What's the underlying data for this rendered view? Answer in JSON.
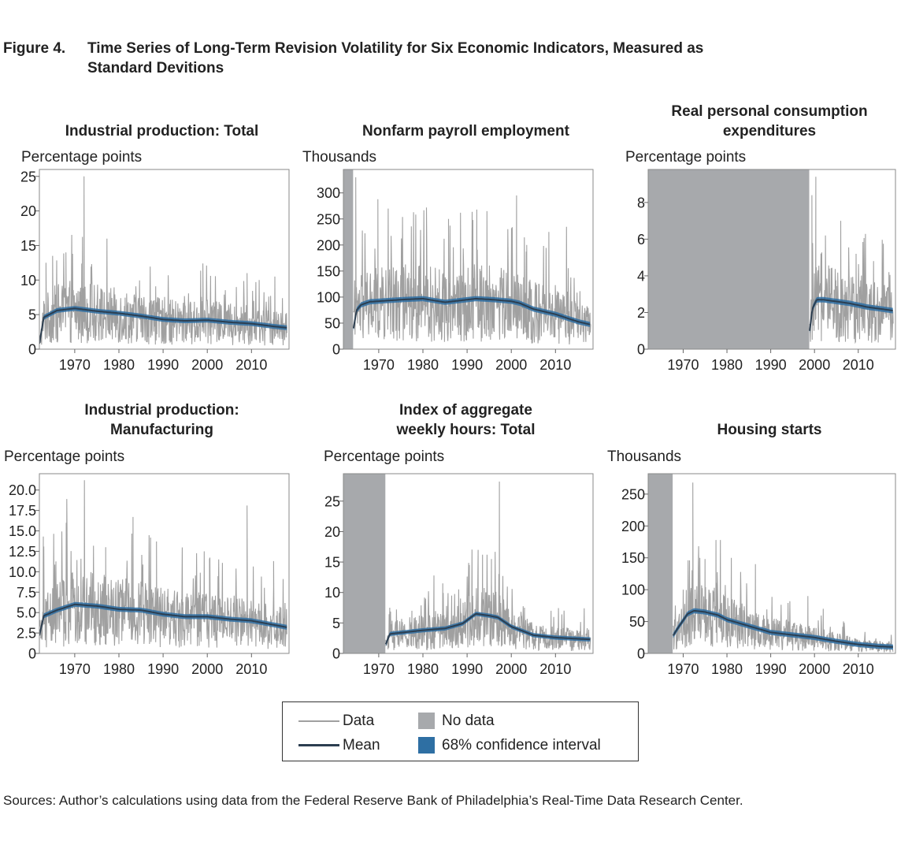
{
  "figure": {
    "number": "Figure 4.",
    "title": "Time Series of Long-Term Revision Volatility for Six Economic Indicators, Measured as Standard Devitions"
  },
  "colors": {
    "data": "#a0a0a0",
    "mean": "#2c3e50",
    "ci": "#2e6fa3",
    "nodata": "#a7a9ac"
  },
  "legend": {
    "data_label": "Data",
    "mean_label": "Mean",
    "nodata_label": "No data",
    "ci_label": "68% confidence interval"
  },
  "sources": "Sources: Author’s calculations using data from the Federal Reserve Bank of Philadelphia’s Real-Time Data Research Center.",
  "chart_data": [
    {
      "type": "line",
      "title": "Industrial production: Total",
      "ylabel": "Percentage points",
      "xlim": [
        1962,
        2018.5
      ],
      "ylim": [
        0,
        26
      ],
      "xticks": [
        1970,
        1980,
        1990,
        2000,
        2010
      ],
      "yticks": [
        0,
        5,
        10,
        15,
        20,
        25
      ],
      "ytick_labels": [
        "0",
        "5",
        "10",
        "15",
        "20",
        "25"
      ],
      "no_data": [],
      "data_range": [
        1962,
        2018
      ],
      "noise_base": 3.0,
      "spikes": [
        [
          1972.1,
          25
        ],
        [
          1977.3,
          16
        ],
        [
          1963.5,
          12.5
        ],
        [
          1965.0,
          13.5
        ],
        [
          1968.0,
          14
        ],
        [
          1969.5,
          13.8
        ],
        [
          1999.0,
          12.4
        ],
        [
          2009.0,
          11
        ],
        [
          2015.3,
          10.5
        ]
      ],
      "mean": [
        [
          1962,
          0.8
        ],
        [
          1963,
          4.6
        ],
        [
          1966,
          5.6
        ],
        [
          1970,
          5.9
        ],
        [
          1975,
          5.5
        ],
        [
          1980,
          5.2
        ],
        [
          1985,
          4.8
        ],
        [
          1990,
          4.3
        ],
        [
          1995,
          4.1
        ],
        [
          2000,
          4.2
        ],
        [
          2005,
          3.9
        ],
        [
          2010,
          3.7
        ],
        [
          2015,
          3.3
        ],
        [
          2018,
          3.1
        ]
      ],
      "ci_halfwidth": 0.35
    },
    {
      "type": "line",
      "title": "Nonfarm payroll employment",
      "ylabel": "Thousands",
      "xlim": [
        1962,
        2018.5
      ],
      "ylim": [
        0,
        345
      ],
      "xticks": [
        1970,
        1980,
        1990,
        2000,
        2010
      ],
      "yticks": [
        0,
        50,
        100,
        150,
        200,
        250,
        300
      ],
      "ytick_labels": [
        "0",
        "50",
        "100",
        "150",
        "200",
        "250",
        "300"
      ],
      "no_data": [
        [
          1962,
          1964.2
        ]
      ],
      "data_range": [
        1964.3,
        2018
      ],
      "noise_base": 55,
      "spikes": [
        [
          1964.8,
          330
        ],
        [
          1969.8,
          288
        ],
        [
          1980.8,
          272
        ],
        [
          1985.8,
          250
        ],
        [
          1988.5,
          262
        ],
        [
          1992.2,
          268
        ],
        [
          1994.5,
          265
        ],
        [
          2001.2,
          295
        ],
        [
          2003.5,
          200
        ],
        [
          2008.5,
          225
        ],
        [
          2012.5,
          235
        ]
      ],
      "mean": [
        [
          1964.3,
          40
        ],
        [
          1965,
          75
        ],
        [
          1966,
          85
        ],
        [
          1968,
          91
        ],
        [
          1975,
          95
        ],
        [
          1980,
          97
        ],
        [
          1985,
          90
        ],
        [
          1990,
          95
        ],
        [
          1992,
          97
        ],
        [
          1996,
          95
        ],
        [
          2000,
          92
        ],
        [
          2002,
          88
        ],
        [
          2005,
          77
        ],
        [
          2010,
          67
        ],
        [
          2015,
          53
        ],
        [
          2018,
          47
        ]
      ],
      "ci_halfwidth": 5
    },
    {
      "type": "line",
      "title": "Real personal consumption expenditures",
      "ylabel": "Percentage points",
      "xlim": [
        1962,
        2018.5
      ],
      "ylim": [
        0,
        9.8
      ],
      "xticks": [
        1970,
        1980,
        1990,
        2000,
        2010
      ],
      "yticks": [
        0,
        2,
        4,
        6,
        8
      ],
      "ytick_labels": [
        "0",
        "2",
        "4",
        "6",
        "8"
      ],
      "no_data": [
        [
          1962,
          1998.8
        ]
      ],
      "data_range": [
        1998.9,
        2018
      ],
      "noise_base": 1.8,
      "spikes": [
        [
          1999.4,
          8.4
        ],
        [
          2000.3,
          9.4
        ],
        [
          2002.5,
          6.2
        ],
        [
          2006.0,
          7.0
        ],
        [
          2009.5,
          5.2
        ],
        [
          2013.5,
          4.8
        ],
        [
          2017.0,
          4.2
        ]
      ],
      "mean": [
        [
          1998.9,
          1.0
        ],
        [
          1999.5,
          2.2
        ],
        [
          2000.5,
          2.7
        ],
        [
          2002,
          2.7
        ],
        [
          2005,
          2.6
        ],
        [
          2008,
          2.5
        ],
        [
          2012,
          2.3
        ],
        [
          2015,
          2.2
        ],
        [
          2018,
          2.1
        ]
      ],
      "ci_halfwidth": 0.15
    },
    {
      "type": "line",
      "title": "Industrial production: Manufacturing",
      "ylabel": "Percentage points",
      "xlim": [
        1962,
        2018.5
      ],
      "ylim": [
        0,
        22
      ],
      "xticks": [
        1970,
        1980,
        1990,
        2000,
        2010
      ],
      "yticks": [
        0,
        2.5,
        5,
        7.5,
        10,
        12.5,
        15,
        17.5,
        20
      ],
      "ytick_labels": [
        "0",
        "2.5",
        "5.0",
        "7.5",
        "10.0",
        "12.5",
        "15.0",
        "17.5",
        "20.0"
      ],
      "no_data": [],
      "data_range": [
        1962,
        2018
      ],
      "noise_base": 3.5,
      "spikes": [
        [
          1972.2,
          21.2
        ],
        [
          1968.2,
          18.9
        ],
        [
          1983.2,
          16.7
        ],
        [
          1962.9,
          14.3
        ],
        [
          1977.0,
          13.0
        ],
        [
          1988.5,
          13.7
        ],
        [
          1999.3,
          12.5
        ],
        [
          2000.5,
          11.5
        ],
        [
          2009.0,
          18.1
        ],
        [
          2015.0,
          11.3
        ]
      ],
      "mean": [
        [
          1962,
          2.2
        ],
        [
          1963,
          4.6
        ],
        [
          1966,
          5.3
        ],
        [
          1970,
          6.0
        ],
        [
          1975,
          5.8
        ],
        [
          1980,
          5.4
        ],
        [
          1985,
          5.3
        ],
        [
          1990,
          4.8
        ],
        [
          1995,
          4.5
        ],
        [
          2000,
          4.5
        ],
        [
          2005,
          4.2
        ],
        [
          2010,
          4.0
        ],
        [
          2015,
          3.5
        ],
        [
          2018,
          3.2
        ]
      ],
      "ci_halfwidth": 0.3
    },
    {
      "type": "line",
      "title": "Index of aggregate weekly hours: Total",
      "ylabel": "Percentage points",
      "xlim": [
        1962,
        2018.5
      ],
      "ylim": [
        0,
        29.5
      ],
      "xticks": [
        1970,
        1980,
        1990,
        2000,
        2010
      ],
      "yticks": [
        0,
        5,
        10,
        15,
        20,
        25
      ],
      "ytick_labels": [
        "0",
        "5",
        "10",
        "15",
        "20",
        "25"
      ],
      "no_data": [
        [
          1962,
          1971.5
        ]
      ],
      "data_range": [
        1971.6,
        2018
      ],
      "noise_base": 2.6,
      "spikes": [
        [
          1972.5,
          7.5
        ],
        [
          1977.5,
          7.0
        ],
        [
          1982.5,
          12.8
        ],
        [
          1984.5,
          11.5
        ],
        [
          1986.5,
          9.5
        ],
        [
          1988.5,
          9.0
        ],
        [
          1990.5,
          14.5
        ],
        [
          1992.5,
          17.0
        ],
        [
          1993.5,
          16.2
        ],
        [
          1995.5,
          15.5
        ],
        [
          1997.3,
          28.2
        ],
        [
          2003,
          7.5
        ],
        [
          2009,
          7.0
        ],
        [
          2016.5,
          7.4
        ]
      ],
      "mean": [
        [
          1971.6,
          1.5
        ],
        [
          1972.5,
          3.2
        ],
        [
          1975,
          3.4
        ],
        [
          1980,
          3.8
        ],
        [
          1985,
          4.1
        ],
        [
          1989,
          4.9
        ],
        [
          1991,
          6.0
        ],
        [
          1992,
          6.5
        ],
        [
          1995,
          6.2
        ],
        [
          1997,
          5.9
        ],
        [
          2000,
          4.4
        ],
        [
          2005,
          3.0
        ],
        [
          2010,
          2.6
        ],
        [
          2015,
          2.4
        ],
        [
          2018,
          2.3
        ]
      ],
      "ci_halfwidth": 0.35
    },
    {
      "type": "line",
      "title": "Housing starts",
      "ylabel": "Thousands",
      "xlim": [
        1962,
        2018.5
      ],
      "ylim": [
        0,
        282
      ],
      "xticks": [
        1970,
        1980,
        1990,
        2000,
        2010
      ],
      "yticks": [
        0,
        50,
        100,
        150,
        200,
        250
      ],
      "ytick_labels": [
        "0",
        "50",
        "100",
        "150",
        "200",
        "250"
      ],
      "no_data": [
        [
          1962,
          1967.6
        ]
      ],
      "data_range": [
        1967.7,
        2018
      ],
      "noise_base": 40,
      "spikes": [
        [
          1972.2,
          268
        ],
        [
          1970.0,
          100
        ],
        [
          1973.8,
          150
        ],
        [
          1975.0,
          148
        ],
        [
          1977.5,
          178
        ],
        [
          1978.5,
          178
        ],
        [
          1981.0,
          150
        ],
        [
          1984.5,
          110
        ],
        [
          1986.5,
          140
        ],
        [
          1998.5,
          90
        ],
        [
          2002.0,
          70
        ]
      ],
      "mean": [
        [
          1967.7,
          28
        ],
        [
          1969,
          42
        ],
        [
          1971,
          62
        ],
        [
          1972.5,
          67
        ],
        [
          1975,
          65
        ],
        [
          1978,
          60
        ],
        [
          1980,
          53
        ],
        [
          1985,
          43
        ],
        [
          1990,
          33
        ],
        [
          1995,
          29
        ],
        [
          2000,
          25
        ],
        [
          2005,
          19
        ],
        [
          2010,
          14
        ],
        [
          2015,
          11
        ],
        [
          2018,
          10
        ]
      ],
      "ci_halfwidth": 4
    }
  ]
}
